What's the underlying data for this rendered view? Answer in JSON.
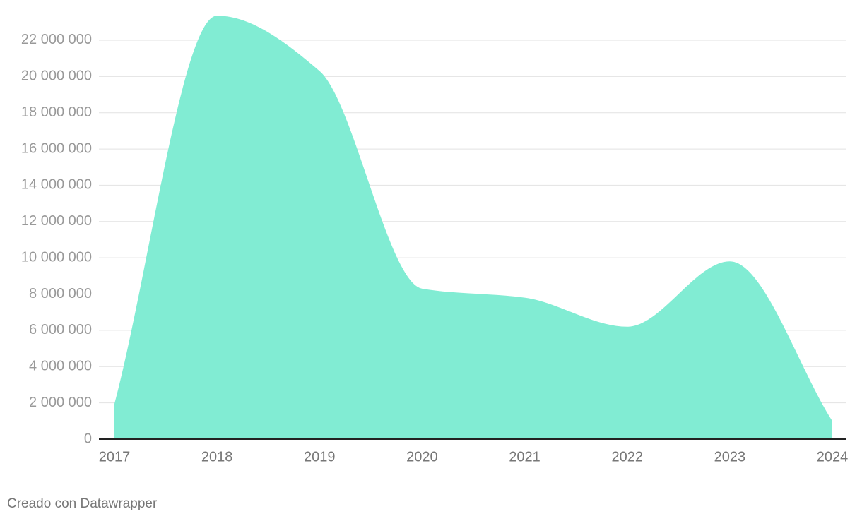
{
  "chart_data": {
    "type": "area",
    "x": [
      2017,
      2018,
      2019,
      2020,
      2021,
      2022,
      2023,
      2024
    ],
    "values": [
      1950000,
      23350000,
      20300000,
      8300000,
      7800000,
      6200000,
      9800000,
      1000000
    ],
    "color": "#7eecd2",
    "xlim": [
      2017,
      2024
    ],
    "xticks": [
      2017,
      2018,
      2019,
      2020,
      2021,
      2022,
      2023,
      2024
    ],
    "ylim": [
      0,
      24000000
    ],
    "yticks": [
      0,
      {
        "value": 2000000,
        "label": "2 000 000"
      },
      {
        "value": 4000000,
        "label": "4 000 000"
      },
      {
        "value": 6000000,
        "label": "6 000 000"
      },
      {
        "value": 8000000,
        "label": "8 000 000"
      },
      {
        "value": 10000000,
        "label": "10 000 000"
      },
      {
        "value": 12000000,
        "label": "12 000 000"
      },
      {
        "value": 14000000,
        "label": "14 000 000"
      },
      {
        "value": 16000000,
        "label": "16 000 000"
      },
      {
        "value": 18000000,
        "label": "18 000 000"
      },
      {
        "value": 20000000,
        "label": "20 000 000"
      },
      {
        "value": 22000000,
        "label": "22 000 000"
      }
    ],
    "grid": true,
    "source": "Creado con Datawrapper"
  }
}
